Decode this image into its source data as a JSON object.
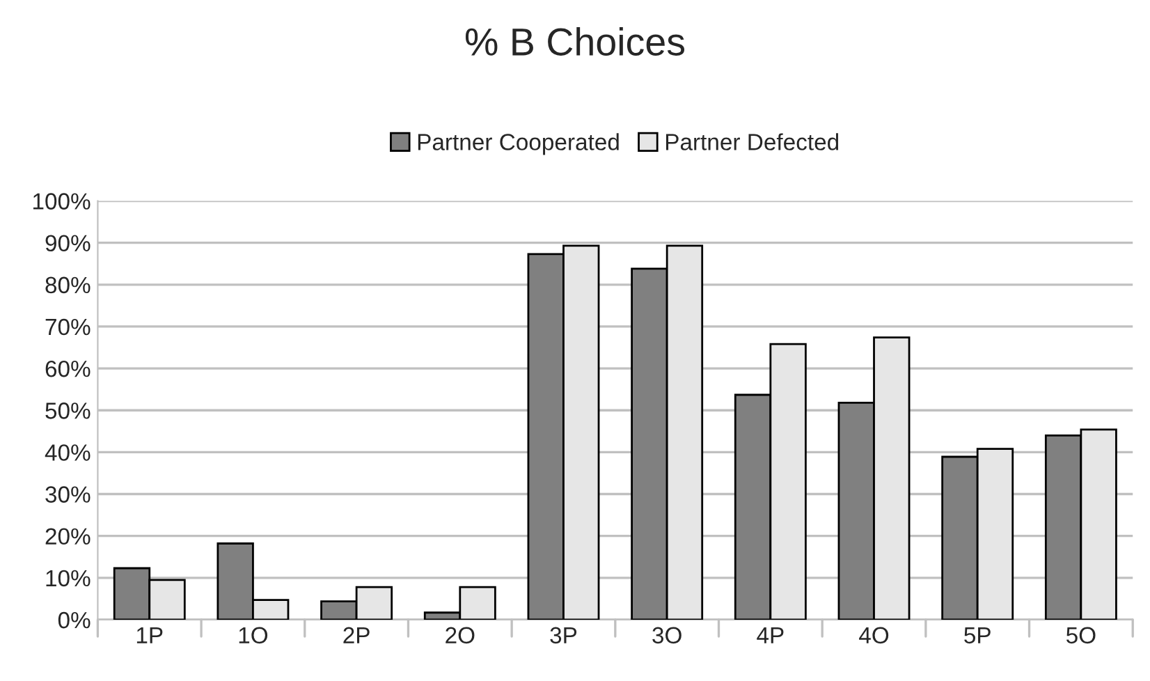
{
  "chart_data": {
    "type": "bar",
    "title": "% B Choices",
    "categories": [
      "1P",
      "1O",
      "2P",
      "2O",
      "3P",
      "3O",
      "4P",
      "4O",
      "5P",
      "5O"
    ],
    "series": [
      {
        "name": "Partner Cooperated",
        "color": "#808080",
        "values": [
          12.3,
          18.2,
          4.4,
          1.7,
          87.3,
          83.8,
          53.7,
          51.8,
          38.9,
          44.0
        ]
      },
      {
        "name": "Partner Defected",
        "color": "#e6e6e6",
        "values": [
          9.5,
          4.7,
          7.8,
          7.8,
          89.3,
          89.3,
          65.8,
          67.4,
          40.8,
          45.4
        ]
      }
    ],
    "ylim": [
      0,
      100
    ],
    "yticks": [
      {
        "value": 0,
        "label": "0%"
      },
      {
        "value": 10,
        "label": "10%"
      },
      {
        "value": 20,
        "label": "20%"
      },
      {
        "value": 30,
        "label": "30%"
      },
      {
        "value": 40,
        "label": "40%"
      },
      {
        "value": 50,
        "label": "50%"
      },
      {
        "value": 60,
        "label": "60%"
      },
      {
        "value": 70,
        "label": "70%"
      },
      {
        "value": 80,
        "label": "80%"
      },
      {
        "value": 90,
        "label": "90%"
      },
      {
        "value": 100,
        "label": "100%"
      }
    ],
    "grid": "y",
    "legend": "top"
  }
}
